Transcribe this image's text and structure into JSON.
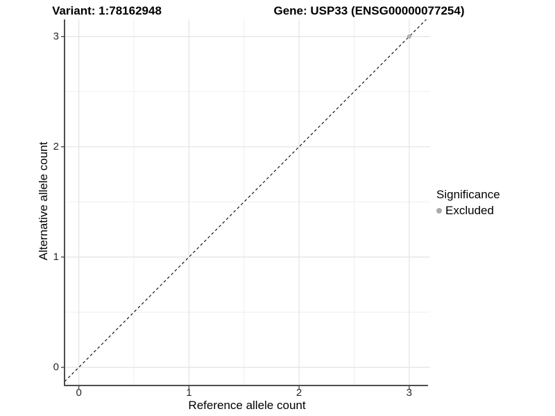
{
  "titles": {
    "variant": "Variant: 1:78162948",
    "gene": "Gene: USP33 (ENSG00000077254)"
  },
  "axes": {
    "x_label": "Reference allele count",
    "y_label": "Alternative allele count",
    "x_tick_labels": [
      "0",
      "1",
      "2",
      "3"
    ],
    "y_tick_labels": [
      "0",
      "1",
      "2",
      "3"
    ]
  },
  "legend": {
    "title": "Significance",
    "items": [
      {
        "label": "Excluded",
        "color": "#aaaaaa"
      }
    ]
  },
  "style": {
    "background": "#ffffff",
    "grid_major": "#e3e3e3",
    "grid_minor": "#efefef",
    "axis_line": "#4d4d4d",
    "tick_mark": "#4d4d4d",
    "reference_line": "#000000",
    "point_color": "#aaaaaa"
  },
  "chart_data": {
    "type": "scatter",
    "title": "Variant: 1:78162948    Gene: USP33 (ENSG00000077254)",
    "xlabel": "Reference allele count",
    "ylabel": "Alternative allele count",
    "xlim": [
      -0.13,
      3.19
    ],
    "ylim": [
      -0.165,
      3.155
    ],
    "x_ticks": [
      0,
      1,
      2,
      3
    ],
    "y_ticks": [
      0,
      1,
      2,
      3
    ],
    "x_minor_ticks": [
      0.5,
      1.5,
      2.5
    ],
    "y_minor_ticks": [
      0.5,
      1.5,
      2.5
    ],
    "grid": true,
    "legend_position": "right",
    "series": [
      {
        "name": "Excluded",
        "color": "#aaaaaa",
        "points": [
          {
            "x": 3,
            "y": 3
          }
        ]
      }
    ],
    "reference_line": {
      "kind": "identity",
      "style": "dashed",
      "color": "#000000"
    }
  }
}
